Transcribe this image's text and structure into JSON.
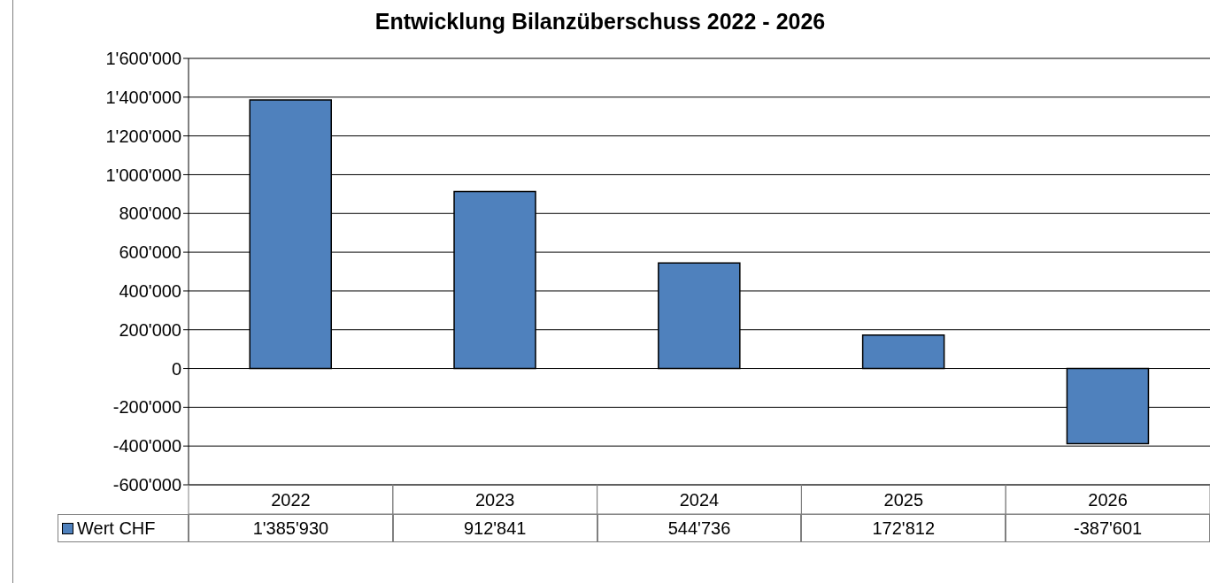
{
  "chart_data": {
    "type": "bar",
    "title": "Entwicklung Bilanzüberschuss 2022 - 2026",
    "categories": [
      "2022",
      "2023",
      "2024",
      "2025",
      "2026"
    ],
    "series": [
      {
        "name": "Wert CHF",
        "color": "#4f81bd",
        "values": [
          1385930,
          912841,
          544736,
          172812,
          -387601
        ],
        "value_labels": [
          "1'385'930",
          "912'841",
          "544'736",
          "172'812",
          "-387'601"
        ]
      }
    ],
    "ylim": [
      -600000,
      1600000
    ],
    "yticks": [
      {
        "value": -600000,
        "label": "-600'000"
      },
      {
        "value": -400000,
        "label": "-400'000"
      },
      {
        "value": -200000,
        "label": "-200'000"
      },
      0,
      {
        "value": 200000,
        "label": "200'000"
      },
      {
        "value": 400000,
        "label": "400'000"
      },
      {
        "value": 600000,
        "label": "600'000"
      },
      {
        "value": 800000,
        "label": "800'000"
      },
      {
        "value": 1000000,
        "label": "1'000'000"
      },
      {
        "value": 1200000,
        "label": "1'200'000"
      },
      {
        "value": 1400000,
        "label": "1'400'000"
      },
      {
        "value": 1600000,
        "label": "1'600'000"
      }
    ],
    "grid": "y",
    "legend": "bottom left"
  }
}
